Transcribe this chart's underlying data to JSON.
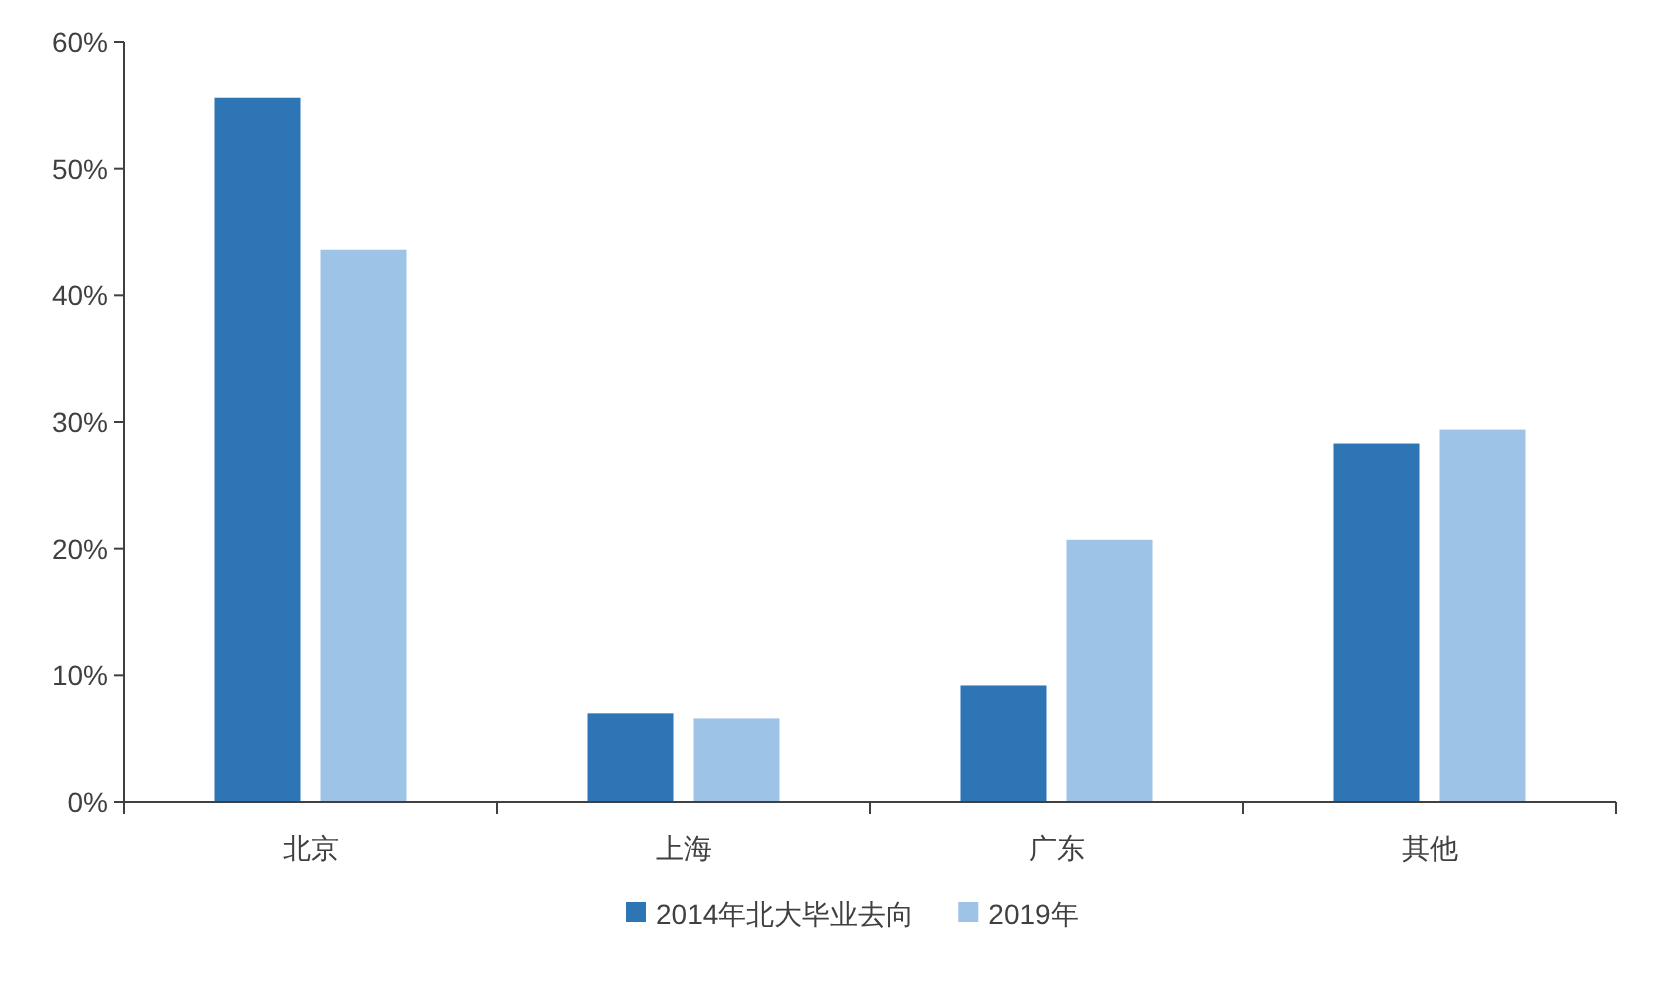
{
  "chart_data": {
    "type": "bar",
    "categories": [
      "北京",
      "上海",
      "广东",
      "其他"
    ],
    "series": [
      {
        "name": "2014年北大毕业去向",
        "color": "#2e75b6",
        "values": [
          55.6,
          7.0,
          9.2,
          28.3
        ]
      },
      {
        "name": "2019年",
        "color": "#9dc3e6",
        "values": [
          43.6,
          6.6,
          20.7,
          29.4
        ]
      }
    ],
    "ylim": [
      0,
      60
    ],
    "yticks": [
      {
        "value": 0,
        "label": "0%"
      },
      {
        "value": 10,
        "label": "10%"
      },
      {
        "value": 20,
        "label": "20%"
      },
      {
        "value": 30,
        "label": "30%"
      },
      {
        "value": 40,
        "label": "40%"
      },
      {
        "value": 50,
        "label": "50%"
      },
      {
        "value": 60,
        "label": "60%"
      }
    ],
    "grid": false,
    "legend": "bottom"
  }
}
